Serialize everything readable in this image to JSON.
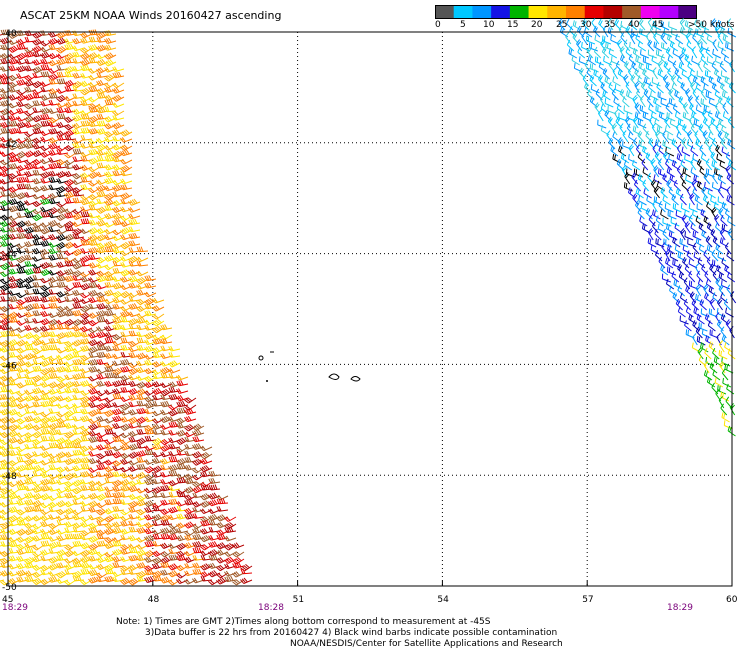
{
  "title": "ASCAT 25KM NOAA Winds 20160427 ascending",
  "legend": {
    "colors": [
      "#555555",
      "#00c8ff",
      "#0096ff",
      "#1414e6",
      "#00b400",
      "#ffe600",
      "#ffb400",
      "#ff8000",
      "#e60000",
      "#b40000",
      "#a05a28",
      "#f000f0",
      "#b400ff",
      "#4b0082"
    ],
    "labels": [
      "0",
      "5",
      "10",
      "15",
      "20",
      "25",
      "30",
      "35",
      "40",
      "45",
      ">50 knots"
    ],
    "unit": "knots"
  },
  "axes": {
    "lat_labels": [
      "-40",
      "-42",
      "-44",
      "-46",
      "-48",
      "-50"
    ],
    "lon_labels": [
      "45",
      "48",
      "51",
      "54",
      "57",
      "60"
    ]
  },
  "times": {
    "left": "18:29",
    "middle": "18:28",
    "right": "18:29"
  },
  "notes": {
    "line1": "Note: 1) Times are GMT 2)Times along bottom correspond to measurement at -45S",
    "line2": "3)Data buffer is 22 hrs from 20160427 4) Black wind barbs indicate possible contamination",
    "line3": "NOAA/NESDIS/Center for Satellite Applications and Research"
  }
}
